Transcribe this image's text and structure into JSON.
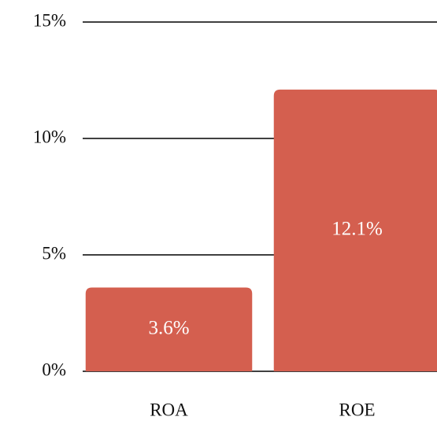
{
  "chart_data": {
    "type": "bar",
    "categories": [
      "ROA",
      "ROE"
    ],
    "values": [
      3.6,
      12.1
    ],
    "value_labels": [
      "3.6%",
      "12.1%"
    ],
    "color": "#d45f4f",
    "ylim": [
      0,
      15
    ],
    "yticks": [
      {
        "value": 0,
        "label": "0%"
      },
      {
        "value": 5,
        "label": "5%"
      },
      {
        "value": 10,
        "label": "10%"
      },
      {
        "value": 15,
        "label": "15%"
      }
    ],
    "grid": true
  }
}
